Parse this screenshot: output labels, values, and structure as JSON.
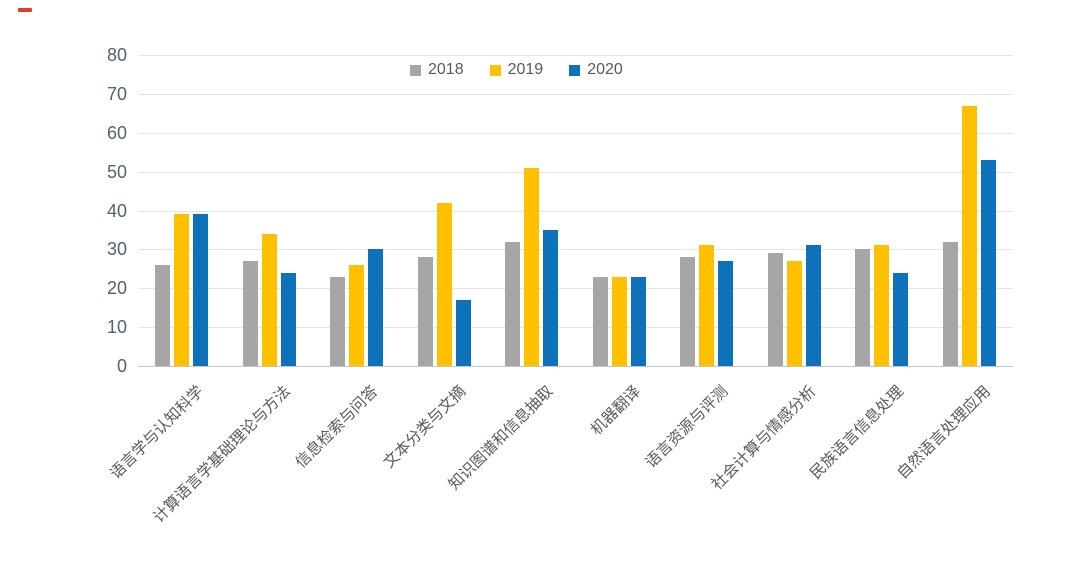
{
  "annotation_mark": {
    "color": "#e8392e"
  },
  "chart_data": {
    "type": "bar",
    "title": "",
    "xlabel": "",
    "ylabel": "",
    "categories": [
      "语言学与认知科学",
      "计算语言学基础理论与方法",
      "信息检索与问答",
      "文本分类与文摘",
      "知识图谱和信息抽取",
      "机器翻译",
      "语言资源与评测",
      "社会计算与情感分析",
      "民族语言信息处理",
      "自然语言处理应用"
    ],
    "series": [
      {
        "name": "2018",
        "color": "#a6a6a6",
        "values": [
          26,
          27,
          23,
          28,
          32,
          23,
          28,
          29,
          30,
          32
        ]
      },
      {
        "name": "2019",
        "color": "#ffc000",
        "values": [
          39,
          34,
          26,
          42,
          51,
          23,
          31,
          27,
          31,
          67
        ]
      },
      {
        "name": "2020",
        "color": "#0e72ba",
        "values": [
          39,
          24,
          30,
          17,
          35,
          23,
          27,
          31,
          24,
          53
        ]
      }
    ],
    "ylim": [
      0,
      80
    ],
    "yticks": [
      0,
      10,
      20,
      30,
      40,
      50,
      60,
      70,
      80
    ],
    "grid": true,
    "legend_position": "top-center"
  }
}
